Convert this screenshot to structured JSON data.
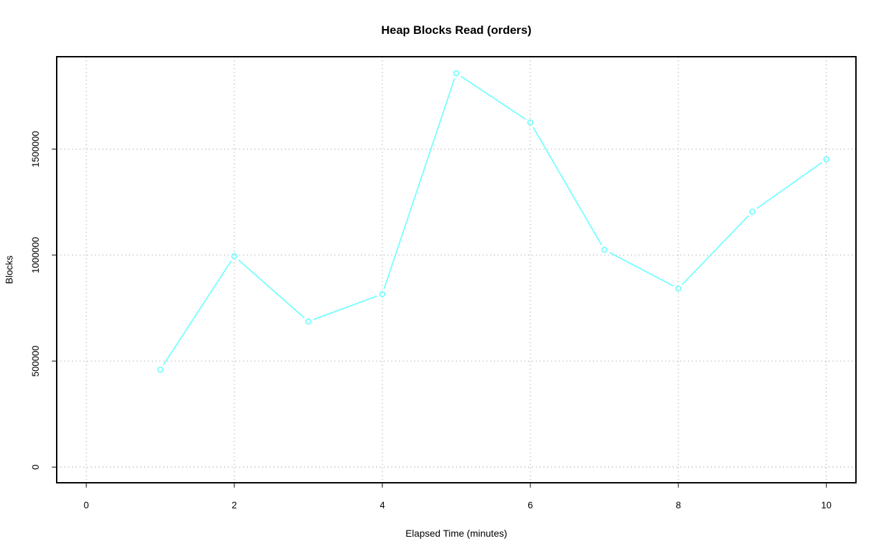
{
  "chart_data": {
    "type": "line",
    "title": "Heap Blocks Read (orders)",
    "xlabel": "Elapsed Time (minutes)",
    "ylabel": "Blocks",
    "x": [
      1,
      2,
      3,
      4,
      5,
      6,
      7,
      8,
      9,
      10
    ],
    "series": [
      {
        "values": [
          460000,
          995000,
          687000,
          816000,
          1858000,
          1626000,
          1025000,
          842000,
          1205000,
          1452000
        ],
        "color": "#66FFFF",
        "marker": "open-circle"
      }
    ],
    "xlim": [
      -0.4,
      10.4
    ],
    "ylim": [
      -74000,
      1936000
    ],
    "xticks": [
      0,
      2,
      4,
      6,
      8,
      10
    ],
    "yticks": [
      0,
      500000,
      1000000,
      1500000
    ],
    "xtick_labels": [
      "0",
      "2",
      "4",
      "6",
      "8",
      "10"
    ],
    "ytick_labels": [
      "0",
      "500000",
      "1000000",
      "1500000"
    ],
    "grid": true,
    "grid_color": "#BEBEBE",
    "legend": "none"
  }
}
